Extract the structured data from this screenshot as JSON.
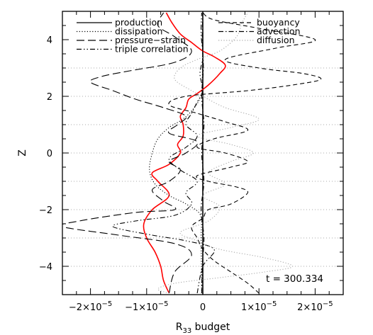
{
  "chart_data": {
    "type": "line",
    "title": "",
    "xlabel": "R₃₃ budget",
    "xlabel_main": "R",
    "xlabel_sub": "33",
    "xlabel_rest": " budget",
    "ylabel": "Z",
    "xlim": [
      -2.5e-05,
      2.5e-05
    ],
    "ylim": [
      -5,
      5
    ],
    "x_ticks": [
      {
        "value": -2e-05,
        "mantissa": "−2×10",
        "exp": "−5"
      },
      {
        "value": -1e-05,
        "mantissa": "−1×10",
        "exp": "−5"
      },
      {
        "value": 0,
        "mantissa": "0",
        "exp": ""
      },
      {
        "value": 1e-05,
        "mantissa": "1×10",
        "exp": "−5"
      },
      {
        "value": 2e-05,
        "mantissa": "2×10",
        "exp": "−5"
      }
    ],
    "y_ticks": [
      {
        "value": -4,
        "label": "−4"
      },
      {
        "value": -2,
        "label": "−2"
      },
      {
        "value": 0,
        "label": "0"
      },
      {
        "value": 2,
        "label": "2"
      },
      {
        "value": 4,
        "label": "4"
      }
    ],
    "grid": {
      "horizontal_dotted_at": [
        -4,
        -3,
        -2,
        -1,
        0,
        1,
        2,
        3
      ],
      "color": "#aaaaaa"
    },
    "annotation": "t = 300.334",
    "legend": {
      "placement": "top",
      "left_entries": [
        "production",
        "dissipation",
        "pressure−strain",
        "triple correlation"
      ],
      "right_entries": [
        "buoyancy",
        "advection",
        "diffusion"
      ]
    },
    "series": [
      {
        "name": "production",
        "style": "solid",
        "color": "#ff0000",
        "points": [
          [
            -6e-06,
            -4.95
          ],
          [
            -7e-06,
            -4.5
          ],
          [
            -7.5e-06,
            -4
          ],
          [
            -8.5e-06,
            -3.5
          ],
          [
            -1e-05,
            -3
          ],
          [
            -1.05e-05,
            -2.5
          ],
          [
            -9e-06,
            -2
          ],
          [
            -6e-06,
            -1.5
          ],
          [
            -8e-06,
            -1
          ],
          [
            -9e-06,
            -0.7
          ],
          [
            -6e-06,
            -0.4
          ],
          [
            -4e-06,
            0
          ],
          [
            -4.5e-06,
            0.3
          ],
          [
            -3.5e-06,
            0.6
          ],
          [
            -3.5e-06,
            1
          ],
          [
            -4e-06,
            1.3
          ],
          [
            -3e-06,
            1.6
          ],
          [
            -2.5e-06,
            1.9
          ],
          [
            -1e-06,
            2.1
          ],
          [
            1e-06,
            2.4
          ],
          [
            3e-06,
            2.8
          ],
          [
            4e-06,
            3.1
          ],
          [
            2e-06,
            3.4
          ],
          [
            0,
            3.6
          ],
          [
            -2e-06,
            3.9
          ],
          [
            -4e-06,
            4.2
          ],
          [
            -5.5e-06,
            4.6
          ],
          [
            -6.5e-06,
            4.95
          ]
        ]
      },
      {
        "name": "dissipation",
        "style": "dotted",
        "color": "#000000",
        "points": [
          [
            -2e-07,
            -4.95
          ],
          [
            -3e-07,
            -3
          ],
          [
            -4e-07,
            -2.2
          ],
          [
            -3e-06,
            -1.8
          ],
          [
            -6e-06,
            -1.5
          ],
          [
            -8.5e-06,
            -1.1
          ],
          [
            -9.5e-06,
            -0.6
          ],
          [
            -9e-06,
            0
          ],
          [
            -8e-06,
            0.5
          ],
          [
            -6e-06,
            0.9
          ],
          [
            -3.5e-06,
            1.2
          ],
          [
            -1.5e-06,
            1.6
          ],
          [
            -4e-07,
            2.0
          ],
          [
            -1e-07,
            2.5
          ],
          [
            0,
            4.95
          ]
        ]
      },
      {
        "name": "pressure−strain",
        "style": "longdash",
        "color": "#000000",
        "points": [
          [
            -6e-06,
            -4.95
          ],
          [
            -5e-06,
            -4.2
          ],
          [
            -2e-06,
            -3.6
          ],
          [
            -5e-06,
            -3.2
          ],
          [
            -1.5e-05,
            -2.9
          ],
          [
            -2.5e-05,
            -2.6
          ],
          [
            -2.2e-05,
            -2.4
          ],
          [
            -1.2e-05,
            -2.1
          ],
          [
            -5e-06,
            -2.0
          ],
          [
            -7e-06,
            -1.7
          ],
          [
            -9e-06,
            -1.3
          ],
          [
            -6e-06,
            -1
          ],
          [
            -4e-06,
            -0.6
          ],
          [
            -6e-06,
            -0.3
          ],
          [
            -3e-06,
            0
          ],
          [
            -1e-06,
            0.4
          ],
          [
            -6e-06,
            0.7
          ],
          [
            -4.5e-06,
            1.0
          ],
          [
            -3e-06,
            1.3
          ],
          [
            -7e-06,
            1.6
          ],
          [
            -1.2e-05,
            1.9
          ],
          [
            -1.6e-05,
            2.2
          ],
          [
            -2e-05,
            2.5
          ],
          [
            -1.8e-05,
            2.7
          ],
          [
            -1.3e-05,
            2.9
          ],
          [
            -5e-06,
            3.2
          ],
          [
            -2e-06,
            3.6
          ],
          [
            -5e-06,
            4.1
          ],
          [
            -8e-06,
            4.5
          ],
          [
            -7e-06,
            4.95
          ]
        ]
      },
      {
        "name": "triple correlation",
        "style": "dashdotdot",
        "color": "#000000",
        "points": [
          [
            -1e-06,
            -4.95
          ],
          [
            0,
            -4
          ],
          [
            2e-06,
            -3.4
          ],
          [
            -3e-06,
            -3.1
          ],
          [
            -9e-06,
            -2.9
          ],
          [
            -1.6e-05,
            -2.6
          ],
          [
            -1.2e-05,
            -2.4
          ],
          [
            -5e-06,
            -2.2
          ],
          [
            -2e-06,
            -1.8
          ],
          [
            -3e-06,
            -1.4
          ],
          [
            -1e-06,
            -1
          ],
          [
            -4e-06,
            -0.6
          ],
          [
            -6e-06,
            -0.2
          ],
          [
            -3e-06,
            0.2
          ],
          [
            -1e-06,
            0.6
          ],
          [
            -3e-06,
            1
          ],
          [
            -2e-06,
            1.4
          ],
          [
            -1e-06,
            1.8
          ],
          [
            0,
            2.2
          ],
          [
            -5e-07,
            2.8
          ],
          [
            0,
            3.4
          ],
          [
            -3e-07,
            4.2
          ],
          [
            -2e-07,
            4.95
          ]
        ]
      },
      {
        "name": "buoyancy",
        "style": "shortdash",
        "color": "#000000",
        "points": [
          [
            1e-05,
            -4.95
          ],
          [
            8e-06,
            -4.6
          ],
          [
            5e-06,
            -4.2
          ],
          [
            2e-06,
            -3.8
          ],
          [
            0,
            -3.4
          ],
          [
            -1e-06,
            -3
          ],
          [
            -2e-06,
            -2.6
          ],
          [
            0,
            -2.3
          ],
          [
            1e-06,
            -2
          ],
          [
            5e-06,
            -1.8
          ],
          [
            8e-06,
            -1.4
          ],
          [
            6e-06,
            -1.2
          ],
          [
            1e-06,
            -1
          ],
          [
            -1e-06,
            -0.8
          ],
          [
            5e-06,
            -0.5
          ],
          [
            8e-06,
            -0.3
          ],
          [
            4e-06,
            0
          ],
          [
            -1e-06,
            0.2
          ],
          [
            2e-06,
            0.5
          ],
          [
            8e-06,
            0.8
          ],
          [
            4e-06,
            1.1
          ],
          [
            -1e-06,
            1.4
          ],
          [
            -6e-06,
            1.7
          ],
          [
            -3e-06,
            2.0
          ],
          [
            8e-06,
            2.2
          ],
          [
            1.6e-05,
            2.4
          ],
          [
            2.1e-05,
            2.6
          ],
          [
            1.8e-05,
            2.8
          ],
          [
            1e-05,
            3
          ],
          [
            4e-06,
            3.3
          ],
          [
            1.3e-05,
            3.7
          ],
          [
            2e-05,
            4.0
          ],
          [
            1e-05,
            4.4
          ],
          [
            2e-06,
            4.7
          ],
          [
            0,
            4.95
          ]
        ]
      },
      {
        "name": "advection",
        "style": "dashdot",
        "color": "#000000",
        "points": [
          [
            -2e-07,
            -4.95
          ],
          [
            -1e-07,
            -4
          ],
          [
            2e-07,
            -3
          ],
          [
            -3e-07,
            -2
          ],
          [
            2e-07,
            -1
          ],
          [
            -2e-07,
            0
          ],
          [
            2e-07,
            1
          ],
          [
            -2e-07,
            2
          ],
          [
            1e-07,
            3
          ],
          [
            -1e-07,
            4
          ],
          [
            0,
            4.95
          ]
        ]
      },
      {
        "name": "diffusion",
        "style": "dotted",
        "color": "#aaaaaa",
        "points": [
          [
            -6e-06,
            -4.95
          ],
          [
            -8e-06,
            -4.8
          ],
          [
            -5e-06,
            -4.6
          ],
          [
            3e-06,
            -4.4
          ],
          [
            1.1e-05,
            -4.2
          ],
          [
            1.6e-05,
            -4
          ],
          [
            1.1e-05,
            -3.7
          ],
          [
            3e-06,
            -3.4
          ],
          [
            -1e-06,
            -3.1
          ],
          [
            -4e-06,
            -2.8
          ],
          [
            1e-06,
            -2.4
          ],
          [
            3e-06,
            -1.9
          ],
          [
            0,
            -1.5
          ],
          [
            4e-06,
            -1.1
          ],
          [
            1e-06,
            -0.7
          ],
          [
            5e-06,
            -0.3
          ],
          [
            9e-06,
            0
          ],
          [
            5e-06,
            0.3
          ],
          [
            -1e-06,
            0.6
          ],
          [
            5e-06,
            0.9
          ],
          [
            1e-05,
            1.2
          ],
          [
            4e-06,
            1.6
          ],
          [
            0,
            2
          ],
          [
            -2e-06,
            2.2
          ],
          [
            -5e-06,
            2.6
          ],
          [
            -4e-06,
            3
          ],
          [
            -1e-06,
            3.3
          ],
          [
            3e-06,
            3.6
          ],
          [
            6e-06,
            4.1
          ],
          [
            7e-06,
            4.6
          ],
          [
            8e-06,
            4.95
          ]
        ]
      }
    ]
  }
}
